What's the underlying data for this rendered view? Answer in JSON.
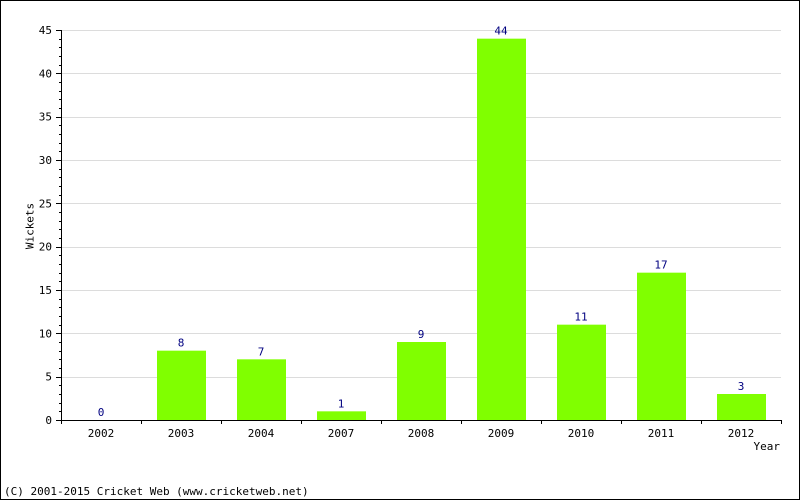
{
  "chart_data": {
    "type": "bar",
    "title": "",
    "xlabel": "Year",
    "ylabel": "Wickets",
    "categories": [
      "2002",
      "2003",
      "2004",
      "2007",
      "2008",
      "2009",
      "2010",
      "2011",
      "2012"
    ],
    "values": [
      0,
      8,
      7,
      1,
      9,
      44,
      11,
      17,
      3
    ],
    "ylim": [
      0,
      45
    ],
    "yticks": [
      "0",
      "5",
      "10",
      "15",
      "20",
      "25",
      "30",
      "35",
      "40",
      "45"
    ],
    "grid": true,
    "bar_color": "#80ff00",
    "label_color": "#000080"
  },
  "footer": {
    "text": "(C) 2001-2015 Cricket Web (www.cricketweb.net)"
  }
}
